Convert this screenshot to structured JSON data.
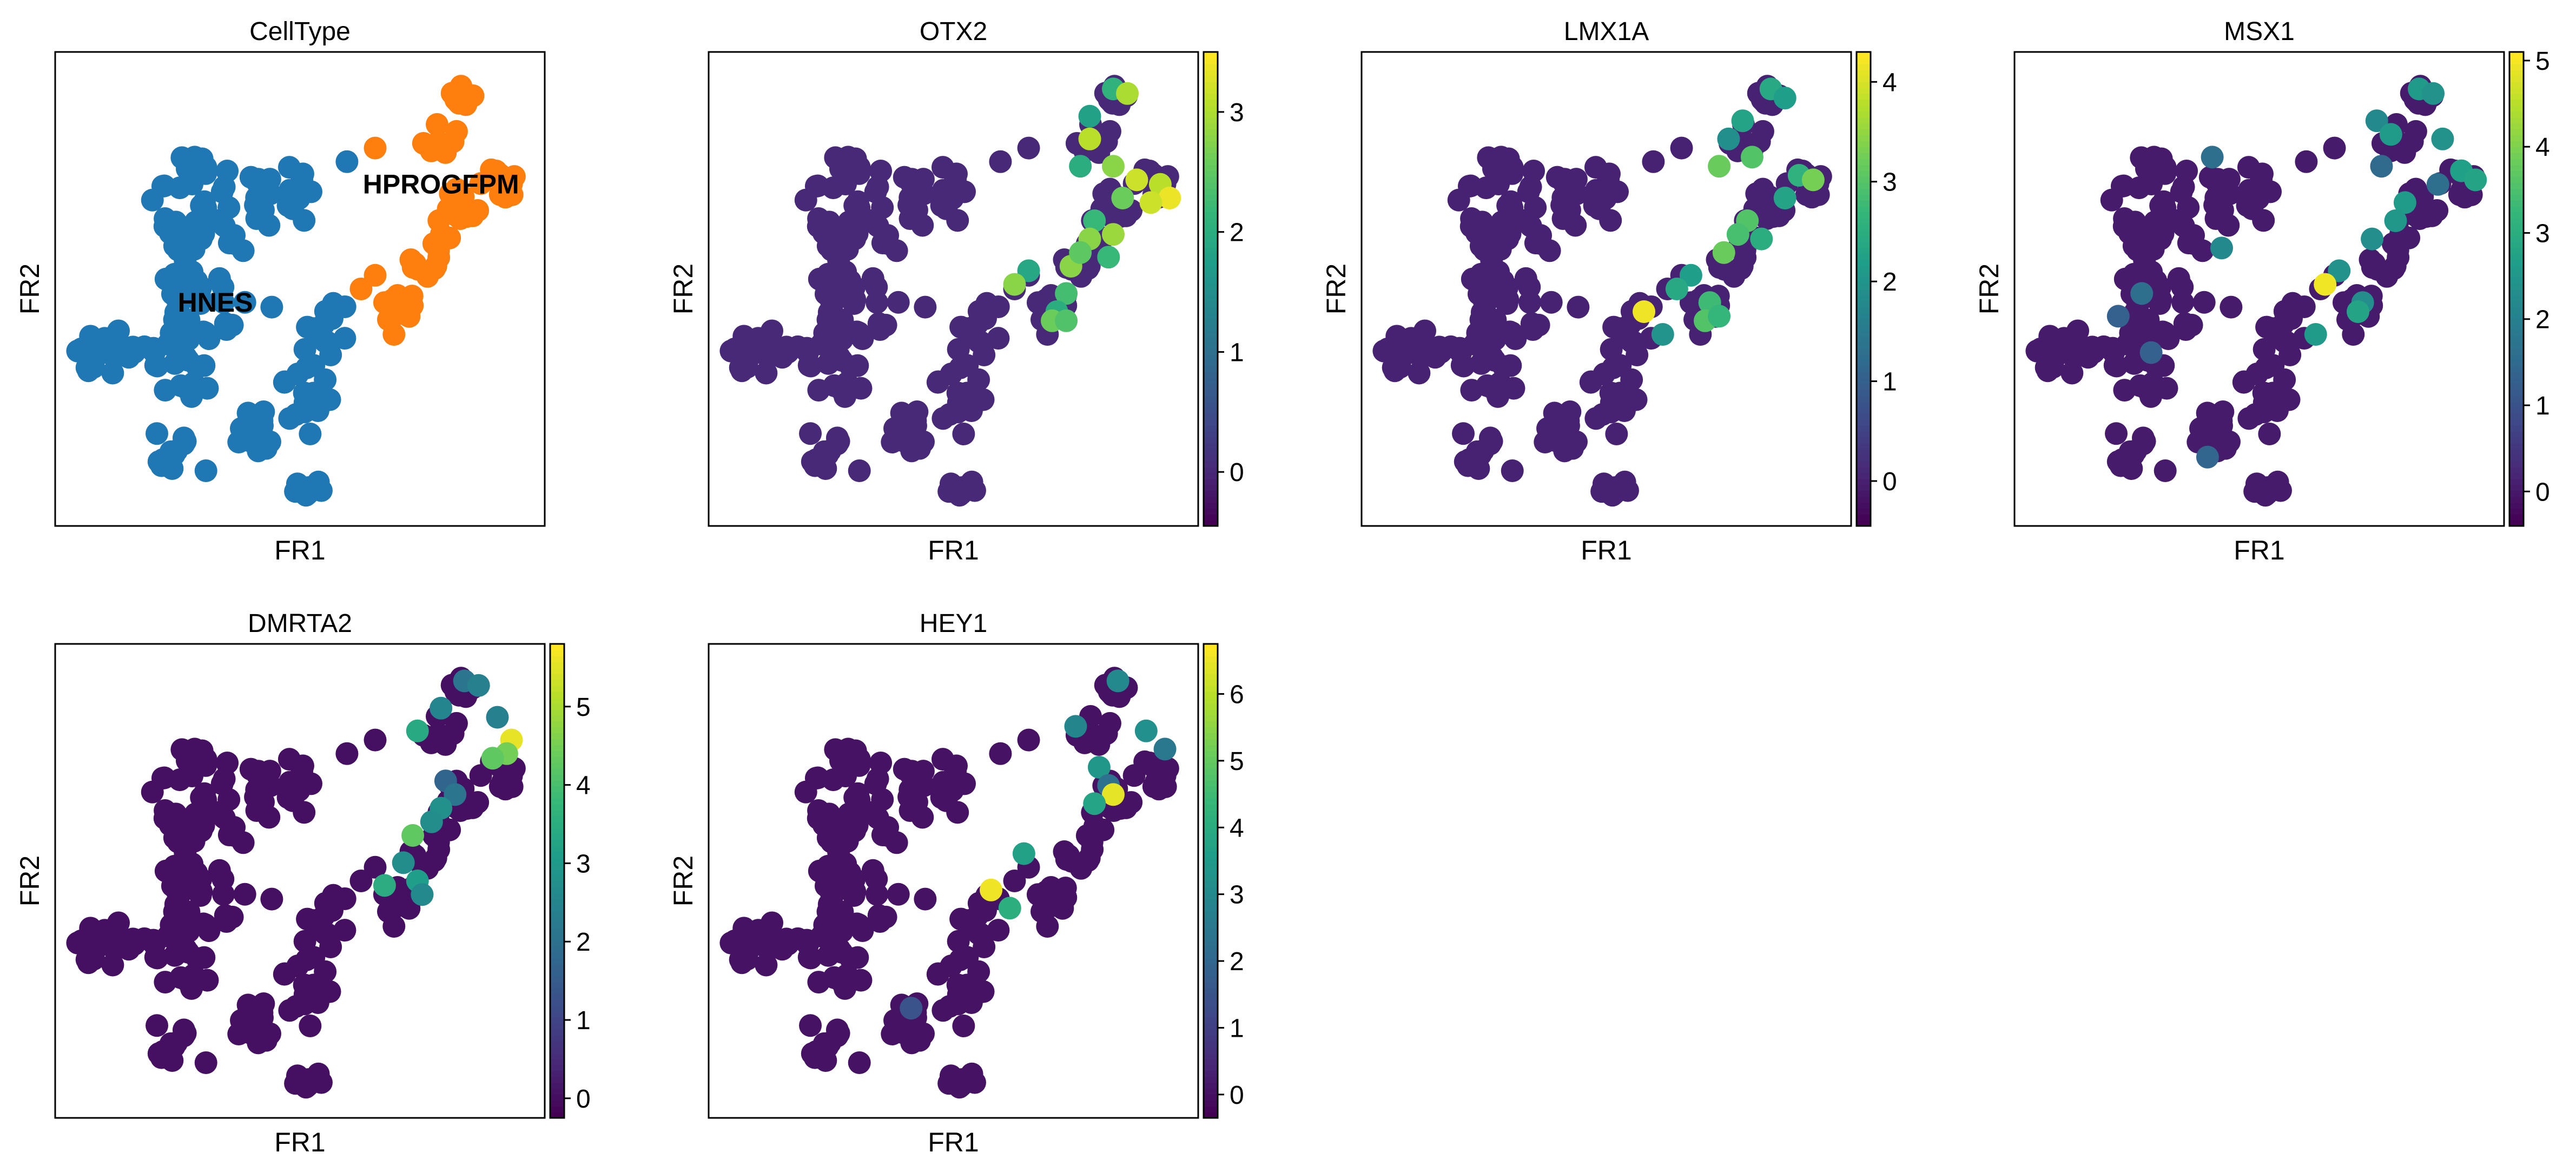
{
  "figure": {
    "xlabel": "FR1",
    "ylabel": "FR2"
  },
  "chart_data": [
    {
      "type": "scatter",
      "title": "CellType",
      "xlabel": "FR1",
      "ylabel": "FR2",
      "legend": "on data",
      "categories": [
        "HNES",
        "HPROGFPM"
      ],
      "category_colors": [
        "#1f77b4",
        "#ff7f0e"
      ],
      "category_labels": [
        {
          "text": "HNES",
          "x": 0.32,
          "y": 0.45
        },
        {
          "text": "HPROGFPM",
          "x": 0.8,
          "y": 0.71
        }
      ]
    },
    {
      "type": "scatter",
      "title": "OTX2",
      "xlabel": "FR1",
      "ylabel": "FR2",
      "colormap": "viridis",
      "colorbar": {
        "range": [
          -0.45,
          3.5
        ],
        "ticks": [
          0,
          1,
          2,
          3
        ]
      },
      "expressed_points": [
        {
          "x": 0.84,
          "y": 0.94,
          "v": 2.1
        },
        {
          "x": 0.87,
          "y": 0.93,
          "v": 3.0
        },
        {
          "x": 0.79,
          "y": 0.88,
          "v": 1.8
        },
        {
          "x": 0.79,
          "y": 0.83,
          "v": 3.1
        },
        {
          "x": 0.77,
          "y": 0.77,
          "v": 2.0
        },
        {
          "x": 0.84,
          "y": 0.77,
          "v": 2.8
        },
        {
          "x": 0.89,
          "y": 0.74,
          "v": 3.2
        },
        {
          "x": 0.86,
          "y": 0.7,
          "v": 2.6
        },
        {
          "x": 0.94,
          "y": 0.73,
          "v": 3.1
        },
        {
          "x": 0.96,
          "y": 0.7,
          "v": 3.4
        },
        {
          "x": 0.92,
          "y": 0.69,
          "v": 3.2
        },
        {
          "x": 0.8,
          "y": 0.65,
          "v": 2.2
        },
        {
          "x": 0.79,
          "y": 0.61,
          "v": 2.8
        },
        {
          "x": 0.84,
          "y": 0.62,
          "v": 2.9
        },
        {
          "x": 0.83,
          "y": 0.57,
          "v": 2.2
        },
        {
          "x": 0.75,
          "y": 0.55,
          "v": 2.8
        },
        {
          "x": 0.77,
          "y": 0.58,
          "v": 2.5
        },
        {
          "x": 0.74,
          "y": 0.49,
          "v": 2.3
        },
        {
          "x": 0.66,
          "y": 0.54,
          "v": 1.9
        },
        {
          "x": 0.63,
          "y": 0.51,
          "v": 2.8
        },
        {
          "x": 0.72,
          "y": 0.45,
          "v": 2.0
        },
        {
          "x": 0.71,
          "y": 0.43,
          "v": 2.6
        },
        {
          "x": 0.74,
          "y": 0.43,
          "v": 2.4
        }
      ]
    },
    {
      "type": "scatter",
      "title": "LMX1A",
      "xlabel": "FR1",
      "ylabel": "FR2",
      "colormap": "viridis",
      "colorbar": {
        "range": [
          -0.45,
          4.3
        ],
        "ticks": [
          0,
          1,
          2,
          3,
          4
        ]
      },
      "expressed_points": [
        {
          "x": 0.85,
          "y": 0.94,
          "v": 2.4
        },
        {
          "x": 0.88,
          "y": 0.92,
          "v": 2.2
        },
        {
          "x": 0.79,
          "y": 0.87,
          "v": 2.3
        },
        {
          "x": 0.76,
          "y": 0.83,
          "v": 1.9
        },
        {
          "x": 0.81,
          "y": 0.79,
          "v": 3.0
        },
        {
          "x": 0.74,
          "y": 0.77,
          "v": 3.2
        },
        {
          "x": 0.91,
          "y": 0.75,
          "v": 2.6
        },
        {
          "x": 0.94,
          "y": 0.74,
          "v": 3.3
        },
        {
          "x": 0.88,
          "y": 0.7,
          "v": 2.3
        },
        {
          "x": 0.8,
          "y": 0.65,
          "v": 3.0
        },
        {
          "x": 0.78,
          "y": 0.62,
          "v": 2.9
        },
        {
          "x": 0.83,
          "y": 0.61,
          "v": 2.5
        },
        {
          "x": 0.75,
          "y": 0.58,
          "v": 3.2
        },
        {
          "x": 0.68,
          "y": 0.53,
          "v": 2.2
        },
        {
          "x": 0.65,
          "y": 0.5,
          "v": 2.4
        },
        {
          "x": 0.72,
          "y": 0.47,
          "v": 2.8
        },
        {
          "x": 0.58,
          "y": 0.45,
          "v": 4.2
        },
        {
          "x": 0.62,
          "y": 0.4,
          "v": 2.0
        },
        {
          "x": 0.71,
          "y": 0.43,
          "v": 3.0
        },
        {
          "x": 0.74,
          "y": 0.44,
          "v": 2.7
        }
      ]
    },
    {
      "type": "scatter",
      "title": "MSX1",
      "xlabel": "FR1",
      "ylabel": "FR2",
      "colormap": "viridis",
      "colorbar": {
        "range": [
          -0.4,
          5.1
        ],
        "ticks": [
          0,
          1,
          2,
          3,
          4,
          5
        ]
      },
      "expressed_points": [
        {
          "x": 0.84,
          "y": 0.94,
          "v": 2.6
        },
        {
          "x": 0.87,
          "y": 0.93,
          "v": 2.4
        },
        {
          "x": 0.75,
          "y": 0.87,
          "v": 2.2
        },
        {
          "x": 0.78,
          "y": 0.84,
          "v": 2.6
        },
        {
          "x": 0.89,
          "y": 0.83,
          "v": 2.4
        },
        {
          "x": 0.93,
          "y": 0.76,
          "v": 2.7
        },
        {
          "x": 0.96,
          "y": 0.74,
          "v": 2.8
        },
        {
          "x": 0.88,
          "y": 0.73,
          "v": 1.6
        },
        {
          "x": 0.76,
          "y": 0.77,
          "v": 1.5
        },
        {
          "x": 0.81,
          "y": 0.69,
          "v": 2.6
        },
        {
          "x": 0.79,
          "y": 0.65,
          "v": 2.5
        },
        {
          "x": 0.74,
          "y": 0.61,
          "v": 2.3
        },
        {
          "x": 0.67,
          "y": 0.54,
          "v": 2.4
        },
        {
          "x": 0.64,
          "y": 0.51,
          "v": 5.0
        },
        {
          "x": 0.72,
          "y": 0.47,
          "v": 2.3
        },
        {
          "x": 0.71,
          "y": 0.45,
          "v": 2.8
        },
        {
          "x": 0.62,
          "y": 0.4,
          "v": 2.6
        },
        {
          "x": 0.4,
          "y": 0.79,
          "v": 1.6
        },
        {
          "x": 0.42,
          "y": 0.59,
          "v": 2.2
        },
        {
          "x": 0.25,
          "y": 0.49,
          "v": 1.6
        },
        {
          "x": 0.27,
          "y": 0.36,
          "v": 1.3
        },
        {
          "x": 0.2,
          "y": 0.44,
          "v": 1.3
        },
        {
          "x": 0.39,
          "y": 0.13,
          "v": 1.4
        }
      ]
    },
    {
      "type": "scatter",
      "title": "DMRTA2",
      "xlabel": "FR1",
      "ylabel": "FR2",
      "colormap": "viridis",
      "colorbar": {
        "range": [
          -0.25,
          5.8
        ],
        "ticks": [
          0,
          1,
          2,
          3,
          4,
          5
        ]
      },
      "expressed_points": [
        {
          "x": 0.85,
          "y": 0.94,
          "v": 2.1
        },
        {
          "x": 0.88,
          "y": 0.93,
          "v": 2.4
        },
        {
          "x": 0.8,
          "y": 0.88,
          "v": 2.5
        },
        {
          "x": 0.92,
          "y": 0.86,
          "v": 2.4
        },
        {
          "x": 0.75,
          "y": 0.83,
          "v": 3.4
        },
        {
          "x": 0.95,
          "y": 0.81,
          "v": 5.6
        },
        {
          "x": 0.94,
          "y": 0.78,
          "v": 4.5
        },
        {
          "x": 0.91,
          "y": 0.77,
          "v": 4.3
        },
        {
          "x": 0.81,
          "y": 0.72,
          "v": 1.7
        },
        {
          "x": 0.83,
          "y": 0.69,
          "v": 2.1
        },
        {
          "x": 0.8,
          "y": 0.66,
          "v": 2.8
        },
        {
          "x": 0.78,
          "y": 0.63,
          "v": 2.7
        },
        {
          "x": 0.74,
          "y": 0.6,
          "v": 4.3
        },
        {
          "x": 0.72,
          "y": 0.54,
          "v": 2.7
        },
        {
          "x": 0.68,
          "y": 0.49,
          "v": 3.5
        },
        {
          "x": 0.75,
          "y": 0.5,
          "v": 3.1
        },
        {
          "x": 0.76,
          "y": 0.47,
          "v": 2.6
        }
      ]
    },
    {
      "type": "scatter",
      "title": "HEY1",
      "xlabel": "FR1",
      "ylabel": "FR2",
      "colormap": "viridis",
      "colorbar": {
        "range": [
          -0.35,
          6.75
        ],
        "ticks": [
          0,
          1,
          2,
          3,
          4,
          5,
          6
        ]
      },
      "expressed_points": [
        {
          "x": 0.85,
          "y": 0.94,
          "v": 3.0
        },
        {
          "x": 0.76,
          "y": 0.84,
          "v": 2.9
        },
        {
          "x": 0.91,
          "y": 0.83,
          "v": 3.2
        },
        {
          "x": 0.95,
          "y": 0.79,
          "v": 2.5
        },
        {
          "x": 0.81,
          "y": 0.75,
          "v": 3.4
        },
        {
          "x": 0.83,
          "y": 0.71,
          "v": 2.3
        },
        {
          "x": 0.84,
          "y": 0.69,
          "v": 6.5
        },
        {
          "x": 0.8,
          "y": 0.67,
          "v": 3.8
        },
        {
          "x": 0.65,
          "y": 0.56,
          "v": 3.7
        },
        {
          "x": 0.58,
          "y": 0.48,
          "v": 6.6
        },
        {
          "x": 0.62,
          "y": 0.44,
          "v": 4.1
        },
        {
          "x": 0.41,
          "y": 0.22,
          "v": 1.5
        }
      ]
    }
  ]
}
